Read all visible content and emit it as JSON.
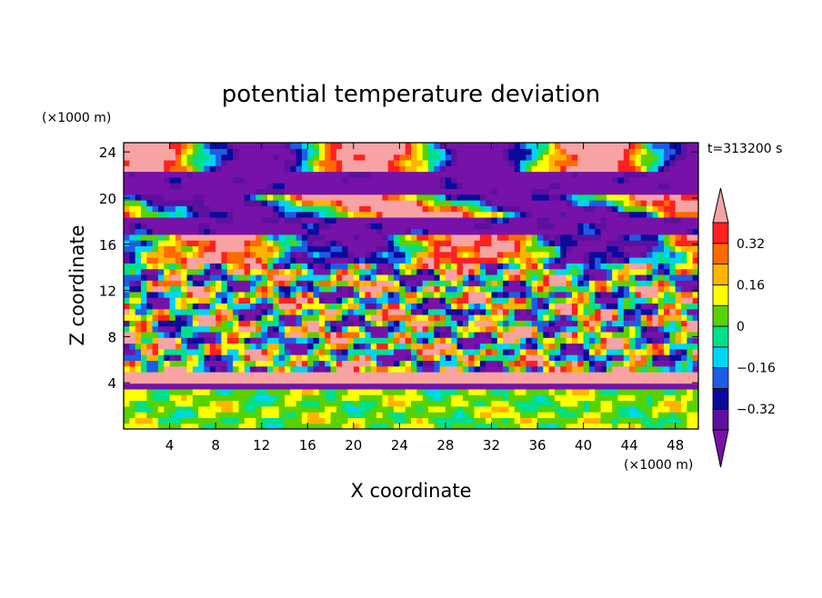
{
  "chart_data": {
    "type": "heatmap",
    "title": "potential temperature deviation",
    "xlabel": "X coordinate",
    "ylabel": "Z coordinate",
    "x_unit": "(×1000 m)",
    "y_unit": "(×1000 m)",
    "time_label": "t=313200 s",
    "xlim": [
      0,
      50
    ],
    "ylim": [
      0,
      24.8
    ],
    "xticks": [
      4,
      8,
      12,
      16,
      20,
      24,
      28,
      32,
      36,
      40,
      44,
      48
    ],
    "yticks": [
      4,
      8,
      12,
      16,
      20,
      24
    ],
    "colorbar": {
      "levels": [
        -0.4,
        -0.32,
        -0.24,
        -0.16,
        -0.08,
        0,
        0.08,
        0.16,
        0.24,
        0.32,
        0.4
      ],
      "labeled_ticks": [
        -0.32,
        -0.16,
        0,
        0.16,
        0.32
      ],
      "tick_labels": [
        "−0.32",
        "−0.16",
        "0",
        "0.16",
        "0.32"
      ],
      "band_colors": [
        "#5c109e",
        "#0a0a9c",
        "#1c5de6",
        "#00d4f5",
        "#00e08a",
        "#5ad100",
        "#ffff00",
        "#ffb400",
        "#ff6a00",
        "#ff2020"
      ],
      "below_color": "#7712a8",
      "above_color": "#f7a3a3",
      "extend": "both"
    },
    "layers": [
      {
        "z": [
          0,
          3.5
        ],
        "description": "green-cyan-yellow mix"
      },
      {
        "z": [
          3.5,
          5
        ],
        "description": "pink / purple band"
      },
      {
        "z": [
          5,
          17
        ],
        "description": "mixed turbulent deviations"
      },
      {
        "z": [
          17,
          24.8
        ],
        "description": "alternating pink and purple layers"
      }
    ]
  }
}
